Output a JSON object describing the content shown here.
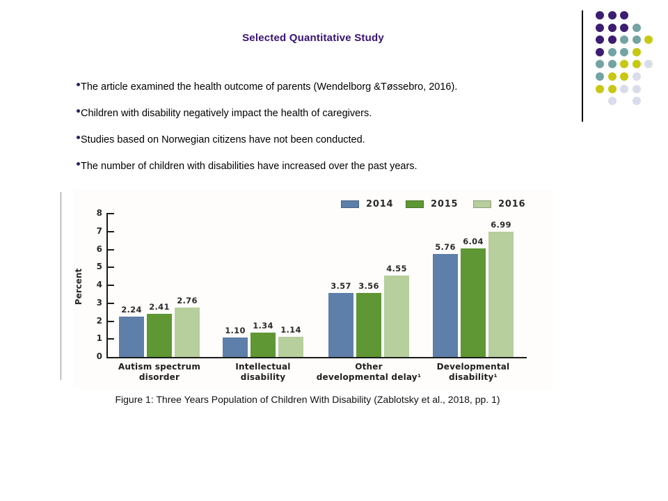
{
  "slide": {
    "title": "Selected Quantitative Study",
    "bullets": [
      "The article examined the health outcome of parents (Wendelborg &Tøssebro, 2016).",
      "Children with disability negatively impact the health of caregivers.",
      "Studies based on Norwegian citizens have not been conducted.",
      "The number of children with disabilities have increased over the past years."
    ],
    "caption": "Figure 1: Three Years Population of Children With Disability (Zablotsky et al., 2018, pp. 1)"
  },
  "colors": {
    "title_text": "#371275",
    "left_rule": "#8c8c8c"
  },
  "chart_data": {
    "type": "bar",
    "title": "",
    "xlabel": "",
    "ylabel": "Percent",
    "ylim": [
      0,
      8
    ],
    "grid": false,
    "legend_position": "top-right",
    "value_labels": true,
    "categories": [
      "Autism spectrum\ndisorder",
      "Intellectual\ndisability",
      "Other\ndevelopmental delay¹",
      "Developmental\ndisability¹"
    ],
    "series": [
      {
        "name": "2014",
        "color": "#5d7fa9",
        "values": [
          2.24,
          1.1,
          3.57,
          5.76
        ]
      },
      {
        "name": "2015",
        "color": "#5e9733",
        "values": [
          2.41,
          1.34,
          3.56,
          6.04
        ]
      },
      {
        "name": "2016",
        "color": "#b6cf9d",
        "values": [
          2.76,
          1.14,
          4.55,
          6.99
        ]
      }
    ]
  },
  "decor_dots": {
    "colors": {
      "P": "#3c1d72",
      "T": "#74a3a3",
      "Y": "#c6c813",
      "L": "#dadbeb"
    },
    "rows": [
      [
        "P",
        "P",
        "P"
      ],
      [
        "P",
        "P",
        "P",
        "T"
      ],
      [
        "P",
        "P",
        "T",
        "T",
        "Y"
      ],
      [
        "P",
        "T",
        "T",
        "Y"
      ],
      [
        "T",
        "T",
        "Y",
        "Y",
        "L"
      ],
      [
        "T",
        "Y",
        "Y",
        "L"
      ],
      [
        "Y",
        "Y",
        "L",
        "L"
      ],
      [
        "",
        "L",
        "",
        "L"
      ]
    ]
  }
}
